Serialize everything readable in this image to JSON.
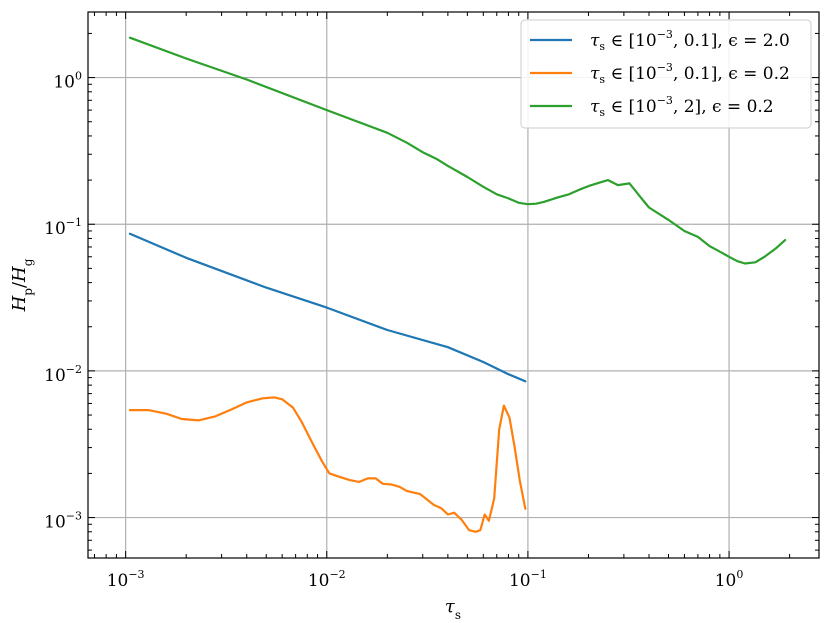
{
  "chart_data": {
    "type": "line",
    "xscale": "log",
    "yscale": "log",
    "xlim": [
      0.00065,
      2.8
    ],
    "ylim": [
      0.00053,
      2.8
    ],
    "grid": true,
    "legend_position": "top-right",
    "xlabel": {
      "base": "τ",
      "sub": "s"
    },
    "ylabel": {
      "num": "H",
      "num_sub": "p",
      "sep": "/",
      "den": "H",
      "den_sub": "g"
    },
    "x_ticks": [
      {
        "value": 0.001,
        "base": "10",
        "exp": "−3"
      },
      {
        "value": 0.01,
        "base": "10",
        "exp": "−2"
      },
      {
        "value": 0.1,
        "base": "10",
        "exp": "−1"
      },
      {
        "value": 1,
        "base": "10",
        "exp": "0"
      }
    ],
    "y_ticks": [
      {
        "value": 0.001,
        "base": "10",
        "exp": "−3"
      },
      {
        "value": 0.01,
        "base": "10",
        "exp": "−2"
      },
      {
        "value": 0.1,
        "base": "10",
        "exp": "−1"
      },
      {
        "value": 1,
        "base": "10",
        "exp": "0"
      }
    ],
    "series": [
      {
        "name": "τs ∈ [10−3, 0.1], ϵ = 2.0",
        "legend": {
          "pre": "τ",
          "sub": "s",
          "mid": " ∈ [10",
          "exp": "−3",
          "post": ", 0.1], ϵ = 2.0"
        },
        "color": "#1f77b4",
        "x": [
          0.00105,
          0.002,
          0.005,
          0.01,
          0.02,
          0.04,
          0.06,
          0.08,
          0.097
        ],
        "y": [
          0.086,
          0.059,
          0.037,
          0.027,
          0.019,
          0.0145,
          0.0115,
          0.0095,
          0.0085
        ]
      },
      {
        "name": "τs ∈ [10−3, 0.1], ϵ = 0.2",
        "legend": {
          "pre": "τ",
          "sub": "s",
          "mid": " ∈ [10",
          "exp": "−3",
          "post": ", 0.1], ϵ = 0.2"
        },
        "color": "#ff7f0e",
        "x": [
          0.00105,
          0.0013,
          0.0016,
          0.0019,
          0.0023,
          0.0028,
          0.0034,
          0.004,
          0.0048,
          0.0055,
          0.006,
          0.0068,
          0.0075,
          0.0085,
          0.0095,
          0.0103,
          0.0115,
          0.013,
          0.0145,
          0.016,
          0.0175,
          0.019,
          0.021,
          0.023,
          0.025,
          0.027,
          0.029,
          0.031,
          0.034,
          0.037,
          0.04,
          0.043,
          0.047,
          0.051,
          0.055,
          0.058,
          0.061,
          0.064,
          0.068,
          0.072,
          0.076,
          0.081,
          0.086,
          0.091,
          0.097
        ],
        "y": [
          0.0054,
          0.0054,
          0.0051,
          0.0047,
          0.0046,
          0.0049,
          0.0055,
          0.0061,
          0.0065,
          0.0066,
          0.0064,
          0.0056,
          0.0045,
          0.0032,
          0.0024,
          0.002,
          0.0019,
          0.0018,
          0.00175,
          0.00185,
          0.00185,
          0.0017,
          0.00168,
          0.00162,
          0.00152,
          0.00148,
          0.00145,
          0.00135,
          0.00122,
          0.00116,
          0.00105,
          0.00108,
          0.00096,
          0.00082,
          0.0008,
          0.00082,
          0.00105,
          0.00095,
          0.00135,
          0.004,
          0.0058,
          0.0048,
          0.003,
          0.0018,
          0.00115
        ]
      },
      {
        "name": "τs ∈ [10−3, 2], ϵ = 0.2",
        "legend": {
          "pre": "τ",
          "sub": "s",
          "mid": " ∈ [10",
          "exp": "−3",
          "post": ", 2], ϵ = 0.2"
        },
        "color": "#2ca02c",
        "x": [
          0.00105,
          0.002,
          0.004,
          0.01,
          0.02,
          0.025,
          0.03,
          0.035,
          0.04,
          0.05,
          0.06,
          0.07,
          0.08,
          0.09,
          0.1,
          0.11,
          0.12,
          0.14,
          0.16,
          0.18,
          0.2,
          0.22,
          0.25,
          0.28,
          0.32,
          0.36,
          0.4,
          0.5,
          0.6,
          0.7,
          0.8,
          0.9,
          1.0,
          1.1,
          1.2,
          1.35,
          1.5,
          1.7,
          1.9
        ],
        "y": [
          1.87,
          1.35,
          0.97,
          0.6,
          0.42,
          0.36,
          0.31,
          0.28,
          0.25,
          0.21,
          0.18,
          0.16,
          0.15,
          0.14,
          0.137,
          0.138,
          0.142,
          0.152,
          0.16,
          0.172,
          0.182,
          0.19,
          0.2,
          0.185,
          0.19,
          0.155,
          0.13,
          0.107,
          0.09,
          0.082,
          0.071,
          0.065,
          0.06,
          0.056,
          0.054,
          0.055,
          0.06,
          0.068,
          0.078
        ]
      }
    ]
  }
}
